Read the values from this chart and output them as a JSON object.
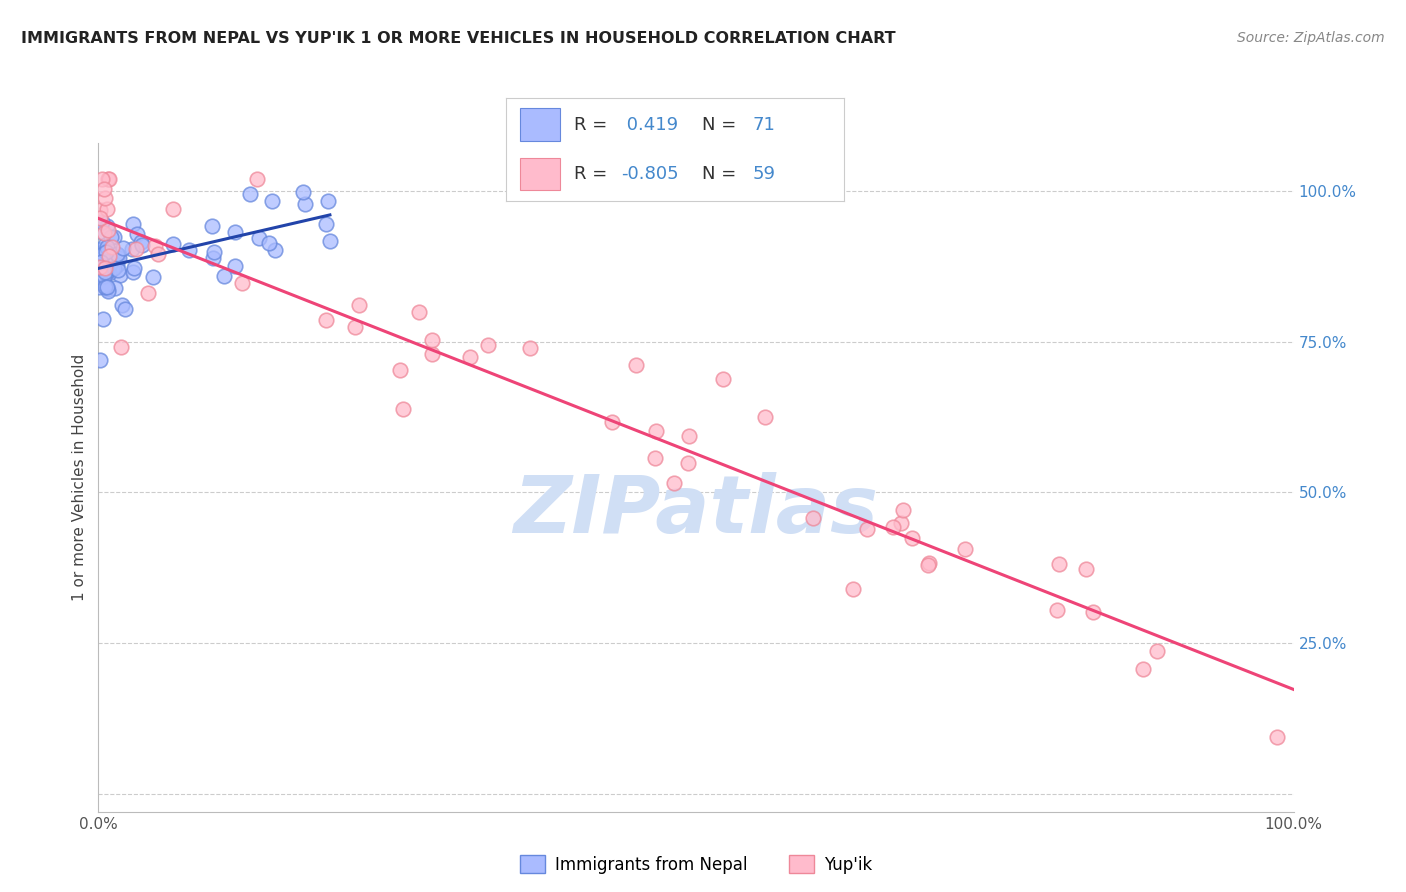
{
  "title": "IMMIGRANTS FROM NEPAL VS YUP'IK 1 OR MORE VEHICLES IN HOUSEHOLD CORRELATION CHART",
  "source": "Source: ZipAtlas.com",
  "ylabel": "1 or more Vehicles in Household",
  "nepal_R": 0.419,
  "nepal_N": 71,
  "yupik_R": -0.805,
  "yupik_N": 59,
  "nepal_color_fill": "#aabbff",
  "nepal_color_edge": "#6688dd",
  "yupik_color_fill": "#ffbbcc",
  "yupik_color_edge": "#ee8899",
  "nepal_line_color": "#2244aa",
  "yupik_line_color": "#ee4477",
  "background_color": "#ffffff",
  "ytick_color": "#4488cc",
  "legend_text_color": "#4488cc",
  "watermark_color": "#d0dff5",
  "title_color": "#222222",
  "source_color": "#888888"
}
